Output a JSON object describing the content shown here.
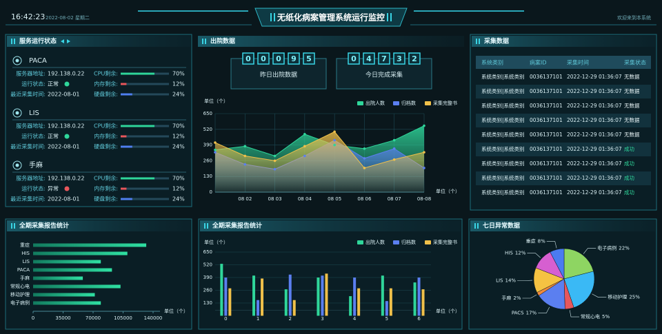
{
  "header": {
    "time": "16:42:23",
    "date": "2022-08-02 星期二",
    "title": "无纸化病案管理系统运行监控",
    "welcome": "欢迎来到本系统"
  },
  "service_status": {
    "title": "服务运行状态",
    "labels": {
      "address": "服务器地址:",
      "status": "运行状态:",
      "time": "最近采集时间:",
      "cpu": "CPU剩余:",
      "memory": "内存剩余:",
      "disk": "硬盘剩余:"
    },
    "colors": {
      "cpu": "#2fd69a",
      "memory": "#e8575c",
      "disk": "#4f7ff0"
    },
    "services": [
      {
        "name": "PACA",
        "address": "192.138.0.22",
        "status": "正常",
        "ok": true,
        "time": "2022-08-01",
        "cpu": {
          "value": 70,
          "label": "70%"
        },
        "memory": {
          "value": 12,
          "label": "12%"
        },
        "disk": {
          "value": 24,
          "label": "24%"
        }
      },
      {
        "name": "LIS",
        "address": "192.138.0.22",
        "status": "正常",
        "ok": true,
        "time": "2022-08-01",
        "cpu": {
          "value": 70,
          "label": "70%"
        },
        "memory": {
          "value": 12,
          "label": "12%"
        },
        "disk": {
          "value": 24,
          "label": "24%"
        }
      },
      {
        "name": "手麻",
        "address": "192.138.0.22",
        "status": "异常",
        "ok": false,
        "time": "2022-08-01",
        "cpu": {
          "value": 70,
          "label": "70%"
        },
        "memory": {
          "value": 12,
          "label": "12%"
        },
        "disk": {
          "value": 24,
          "label": "24%"
        }
      }
    ]
  },
  "discharge": {
    "title": "出院数据",
    "counters": [
      {
        "digits": [
          "0",
          "0",
          "0",
          "9",
          "5"
        ],
        "label": "昨日出院数据"
      },
      {
        "digits": [
          "0",
          "4",
          "7",
          "3",
          "2"
        ],
        "label": "今日完成采集"
      }
    ]
  },
  "collection": {
    "title": "采集数据",
    "columns": [
      "系统类别",
      "病案ID",
      "采集时间",
      "采集状态"
    ],
    "rows": [
      {
        "cells": [
          "系统类别|系统类别",
          "0036137101",
          "2022-12-29 01:36:07",
          "无数据"
        ],
        "color": "#e6f2f4"
      },
      {
        "cells": [
          "系统类别|系统类别",
          "0036137101",
          "2022-12-29 01:36:07",
          "无数据"
        ],
        "color": "#e6f2f4"
      },
      {
        "cells": [
          "系统类别|系统类别",
          "0036137101",
          "2022-12-29 01:36:07",
          "无数据"
        ],
        "color": "#e6f2f4"
      },
      {
        "cells": [
          "系统类别|系统类别",
          "0036137101",
          "2022-12-29 01:36:07",
          "无数据"
        ],
        "color": "#e6f2f4"
      },
      {
        "cells": [
          "系统类别|系统类别",
          "0036137101",
          "2022-12-29 01:36:07",
          "无数据"
        ],
        "color": "#e6f2f4"
      },
      {
        "cells": [
          "系统类别|系统类别",
          "0036137101",
          "2022-12-29 01:36:07",
          "成功"
        ],
        "color": "#2fd69a"
      },
      {
        "cells": [
          "系统类别|系统类别",
          "0036137101",
          "2022-12-29 01:36:07",
          "成功"
        ],
        "color": "#2fd69a"
      },
      {
        "cells": [
          "系统类别|系统类别",
          "0036137101",
          "2022-12-29 01:36:07",
          "成功"
        ],
        "color": "#2fd69a"
      },
      {
        "cells": [
          "系统类别|系统类别",
          "0036137101",
          "2022-12-29 01:36:07",
          "成功"
        ],
        "color": "#2fd69a"
      }
    ]
  },
  "chart_data": [
    {
      "type": "line",
      "ylabel": "单位（个）",
      "xlabel": "单位（个）",
      "categories": [
        null,
        "08 02",
        "08 03",
        "08 04",
        "08 05",
        "08 06",
        "08 07",
        "08-08"
      ],
      "series": [
        {
          "name": "出院人数",
          "color": "#2fd69a",
          "values": [
            350,
            380,
            300,
            480,
            390,
            360,
            430,
            550
          ]
        },
        {
          "name": "归档数",
          "color": "#5b7ff0",
          "values": [
            330,
            230,
            190,
            300,
            430,
            280,
            360,
            200
          ]
        },
        {
          "name": "采集完整书",
          "color": "#f0c04a",
          "values": [
            410,
            300,
            260,
            380,
            500,
            200,
            270,
            330
          ]
        }
      ],
      "ylim": [
        0,
        650
      ],
      "yticks": [
        0,
        130,
        260,
        390,
        520,
        650
      ],
      "grid": true
    },
    {
      "type": "hbar",
      "title": "全期采集报告统计",
      "xlabel": "单位（个）",
      "color": "#2fd69a",
      "categories": [
        "重症",
        "HIS",
        "LIS",
        "PACA",
        "手麻",
        "常规心电",
        "移动护理",
        "电子病例"
      ],
      "values": [
        132000,
        110000,
        79000,
        92000,
        58000,
        102000,
        72000,
        79000
      ],
      "xlim": [
        0,
        140000
      ],
      "xticks": [
        0,
        35000,
        70000,
        105000,
        140000
      ]
    },
    {
      "type": "bar",
      "title": "全期采集报告统计",
      "ylabel": "单位（个）",
      "xlabel": "单位（个）",
      "categories": [
        "0",
        "1",
        "2",
        "3",
        "4",
        "5",
        "6"
      ],
      "series": [
        {
          "name": "出院人数",
          "color": "#2fd69a",
          "values": [
            530,
            410,
            270,
            390,
            200,
            410,
            340
          ]
        },
        {
          "name": "归档数",
          "color": "#5b7ff0",
          "values": [
            390,
            160,
            420,
            410,
            390,
            150,
            390
          ]
        },
        {
          "name": "采集完整书",
          "color": "#f0c04a",
          "values": [
            280,
            380,
            160,
            430,
            280,
            280,
            270
          ]
        }
      ],
      "ylim": [
        0,
        650
      ],
      "yticks": [
        130,
        260,
        390,
        520,
        650
      ],
      "grid": true
    },
    {
      "type": "pie",
      "title": "七日异常数据",
      "categories": [
        "电子病例",
        "移动护理",
        "常规心电",
        "PACS",
        "手麻",
        "LIS",
        "HIS",
        "重症"
      ],
      "values": [
        22,
        25,
        5,
        17,
        2,
        14,
        12,
        8
      ],
      "value_labels": [
        "22%",
        "25%",
        "5%",
        "17%",
        "2%",
        "14%",
        "12%",
        "8%"
      ],
      "colors": [
        "#8ed562",
        "#3ab9f5",
        "#e8575c",
        "#5b7ff0",
        "#f08a3c",
        "#f5c242",
        "#d65fd0",
        "#4a7bf0"
      ]
    }
  ]
}
